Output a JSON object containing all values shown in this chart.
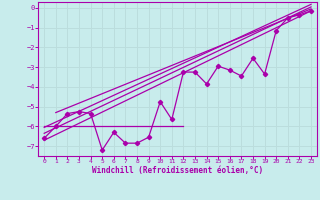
{
  "xlabel": "Windchill (Refroidissement éolien,°C)",
  "bg_color": "#c8ecec",
  "line_color": "#aa00aa",
  "grid_color": "#bbdddd",
  "xlim": [
    -0.5,
    23.5
  ],
  "ylim": [
    -7.5,
    0.3
  ],
  "yticks": [
    0,
    -1,
    -2,
    -3,
    -4,
    -5,
    -6,
    -7
  ],
  "xticks": [
    0,
    1,
    2,
    3,
    4,
    5,
    6,
    7,
    8,
    9,
    10,
    11,
    12,
    13,
    14,
    15,
    16,
    17,
    18,
    19,
    20,
    21,
    22,
    23
  ],
  "zigzag_x": [
    0,
    1,
    2,
    3,
    4,
    5,
    6,
    7,
    8,
    9,
    10,
    11,
    12,
    13,
    14,
    15,
    16,
    17,
    18,
    19,
    20,
    21,
    22,
    23
  ],
  "zigzag_y": [
    -6.6,
    -6.0,
    -5.35,
    -5.25,
    -5.35,
    -7.2,
    -6.3,
    -6.85,
    -6.85,
    -6.55,
    -4.75,
    -5.65,
    -3.25,
    -3.25,
    -3.85,
    -2.95,
    -3.15,
    -3.45,
    -2.55,
    -3.35,
    -1.15,
    -0.5,
    -0.35,
    -0.15
  ],
  "hline_x": [
    0,
    12
  ],
  "hline_y": [
    -6.0,
    -6.0
  ],
  "diag_lines": [
    {
      "x": [
        0,
        23
      ],
      "y": [
        -6.7,
        -0.15
      ]
    },
    {
      "x": [
        0,
        23
      ],
      "y": [
        -6.35,
        0.05
      ]
    },
    {
      "x": [
        0,
        23
      ],
      "y": [
        -6.05,
        0.18
      ]
    },
    {
      "x": [
        1,
        23
      ],
      "y": [
        -5.3,
        -0.05
      ]
    }
  ]
}
